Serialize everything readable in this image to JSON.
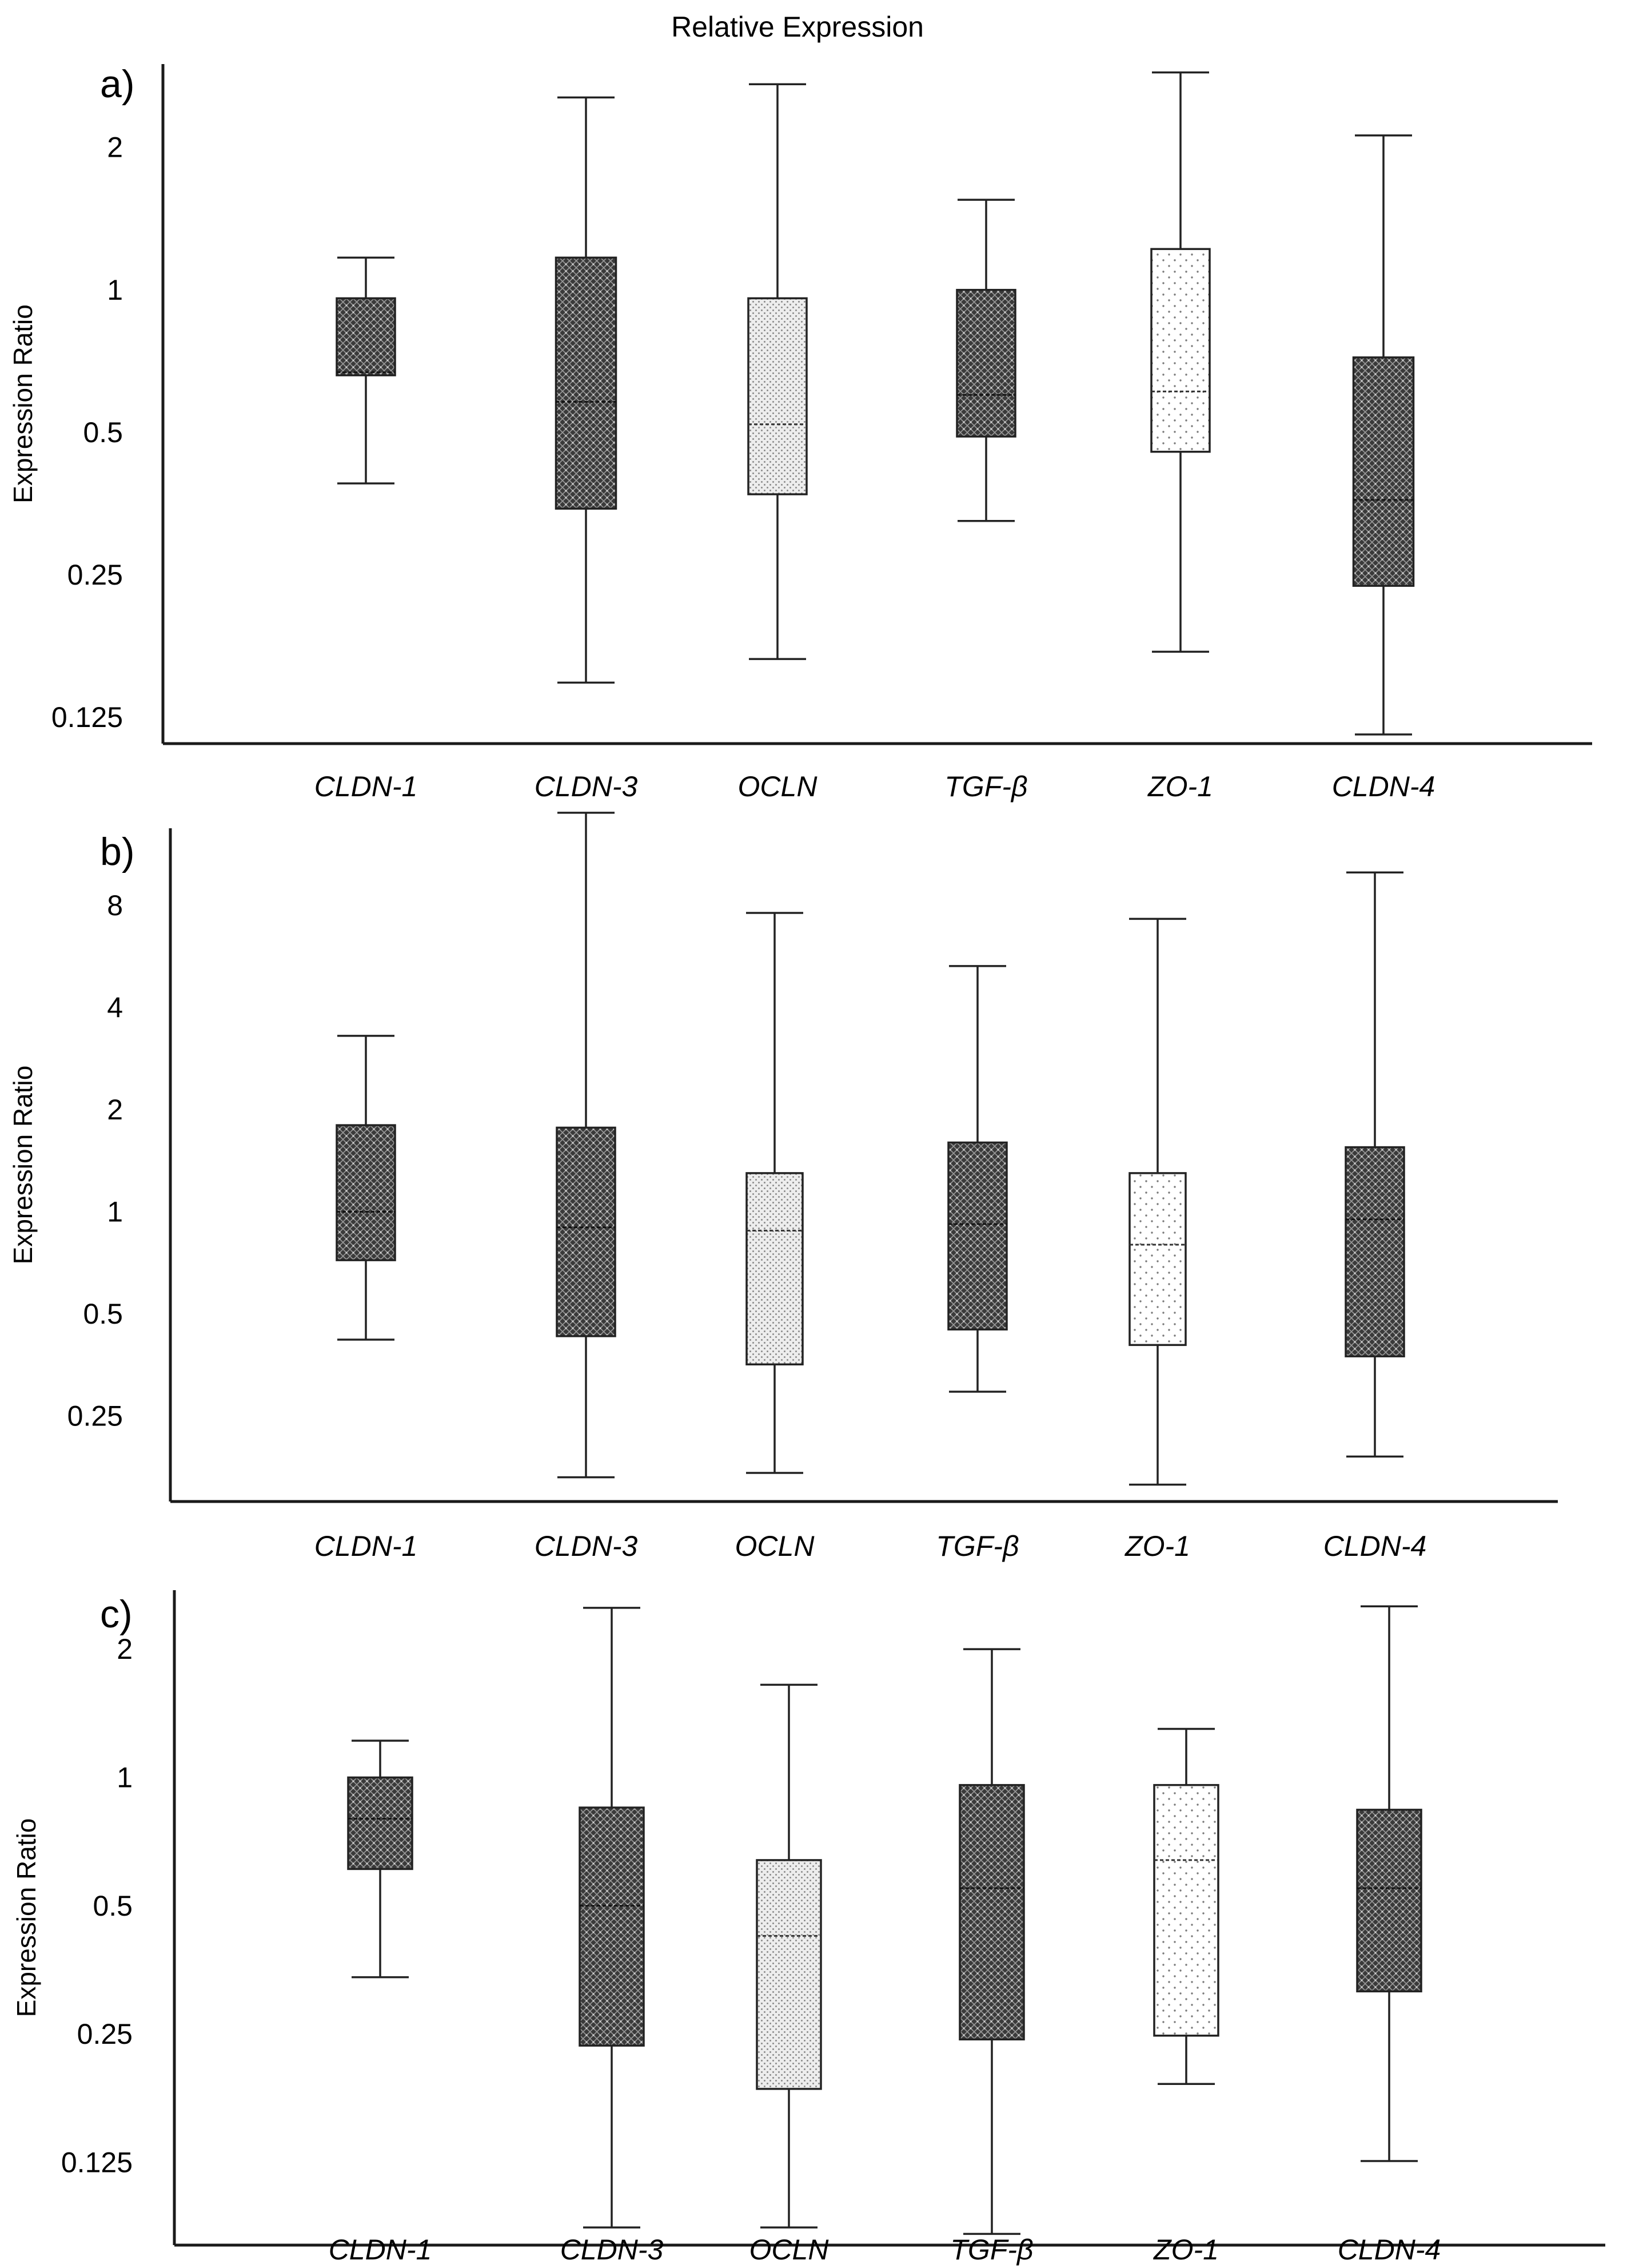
{
  "title": "Relative Expression",
  "colors": {
    "axis": "#1a1a1a",
    "dark_box": "#3a3a3a",
    "light_box": "#e6e6e6",
    "white_box": "#ffffff"
  },
  "chart_data": [
    {
      "type": "box",
      "panel_label": "a)",
      "ylabel": "Expression Ratio",
      "yscale": "log2",
      "ylim": [
        0.11,
        3.0
      ],
      "yticks": [
        0.125,
        0.25,
        0.5,
        1,
        2
      ],
      "ytick_labels": [
        "0.125",
        "0.25",
        "0.5",
        "1",
        "2"
      ],
      "categories": [
        "CLDN-1",
        "CLDN-3",
        "OCLN",
        "TGF-β",
        "ZO-1",
        "CLDN-4"
      ],
      "boxes": [
        {
          "label": "CLDN-1",
          "min": 0.39,
          "q1": 0.66,
          "median": 0.67,
          "q3": 0.96,
          "max": 1.17,
          "fill": "dark"
        },
        {
          "label": "CLDN-3",
          "min": 0.148,
          "q1": 0.345,
          "median": 0.58,
          "q3": 1.17,
          "max": 2.55,
          "fill": "dark"
        },
        {
          "label": "OCLN",
          "min": 0.166,
          "q1": 0.37,
          "median": 0.52,
          "q3": 0.96,
          "max": 2.72,
          "fill": "light"
        },
        {
          "label": "TGF-β",
          "min": 0.325,
          "q1": 0.49,
          "median": 0.6,
          "q3": 1.0,
          "max": 1.55,
          "fill": "dark"
        },
        {
          "label": "ZO-1",
          "min": 0.172,
          "q1": 0.455,
          "median": 0.61,
          "q3": 1.22,
          "max": 2.88,
          "fill": "white"
        },
        {
          "label": "CLDN-4",
          "min": 0.115,
          "q1": 0.237,
          "median": 0.36,
          "q3": 0.72,
          "max": 2.12,
          "fill": "dark"
        }
      ]
    },
    {
      "type": "box",
      "panel_label": "b)",
      "ylabel": "Expression Ratio",
      "yscale": "log2",
      "ylim": [
        0.14,
        13.5
      ],
      "yticks": [
        0.25,
        0.5,
        1,
        2,
        4,
        8
      ],
      "ytick_labels": [
        "0.25",
        "0.5",
        "1",
        "2",
        "4",
        "8"
      ],
      "categories": [
        "CLDN-1",
        "CLDN-3",
        "OCLN",
        "TGF-β",
        "ZO-1",
        "CLDN-4"
      ],
      "boxes": [
        {
          "label": "CLDN-1",
          "min": 0.42,
          "q1": 0.72,
          "median": 1.0,
          "q3": 1.8,
          "max": 3.3,
          "fill": "dark"
        },
        {
          "label": "CLDN-3",
          "min": 0.165,
          "q1": 0.43,
          "median": 0.9,
          "q3": 1.77,
          "max": 15.0,
          "fill": "dark"
        },
        {
          "label": "OCLN",
          "min": 0.17,
          "q1": 0.355,
          "median": 0.88,
          "q3": 1.3,
          "max": 7.6,
          "fill": "light"
        },
        {
          "label": "TGF-β",
          "min": 0.295,
          "q1": 0.45,
          "median": 0.92,
          "q3": 1.6,
          "max": 5.3,
          "fill": "dark"
        },
        {
          "label": "ZO-1",
          "min": 0.157,
          "q1": 0.405,
          "median": 0.8,
          "q3": 1.3,
          "max": 7.3,
          "fill": "white"
        },
        {
          "label": "CLDN-4",
          "min": 0.19,
          "q1": 0.375,
          "median": 0.95,
          "q3": 1.55,
          "max": 10.0,
          "fill": "dark"
        }
      ]
    },
    {
      "type": "box",
      "panel_label": "c)",
      "ylabel": "Expression Ratio",
      "yscale": "log2",
      "ylim": [
        0.08,
        2.75
      ],
      "yticks": [
        0.125,
        0.25,
        0.5,
        1,
        2
      ],
      "ytick_labels": [
        "0.125",
        "0.25",
        "0.5",
        "1",
        "2"
      ],
      "categories": [
        "CLDN-1",
        "CLDN-3",
        "OCLN",
        "TGF-β",
        "ZO-1",
        "CLDN-4"
      ],
      "boxes": [
        {
          "label": "CLDN-1",
          "min": 0.34,
          "q1": 0.61,
          "median": 0.8,
          "q3": 1.0,
          "max": 1.22,
          "fill": "dark"
        },
        {
          "label": "CLDN-3",
          "min": 0.088,
          "q1": 0.235,
          "median": 0.5,
          "q3": 0.85,
          "max": 2.5,
          "fill": "dark"
        },
        {
          "label": "OCLN",
          "min": 0.088,
          "q1": 0.186,
          "median": 0.425,
          "q3": 0.64,
          "max": 1.65,
          "fill": "light"
        },
        {
          "label": "TGF-β",
          "min": 0.085,
          "q1": 0.243,
          "median": 0.55,
          "q3": 0.96,
          "max": 2.0,
          "fill": "dark"
        },
        {
          "label": "ZO-1",
          "min": 0.191,
          "q1": 0.248,
          "median": 0.64,
          "q3": 0.96,
          "max": 1.3,
          "fill": "white"
        },
        {
          "label": "CLDN-4",
          "min": 0.126,
          "q1": 0.315,
          "median": 0.55,
          "q3": 0.84,
          "max": 2.52,
          "fill": "dark"
        }
      ]
    }
  ]
}
